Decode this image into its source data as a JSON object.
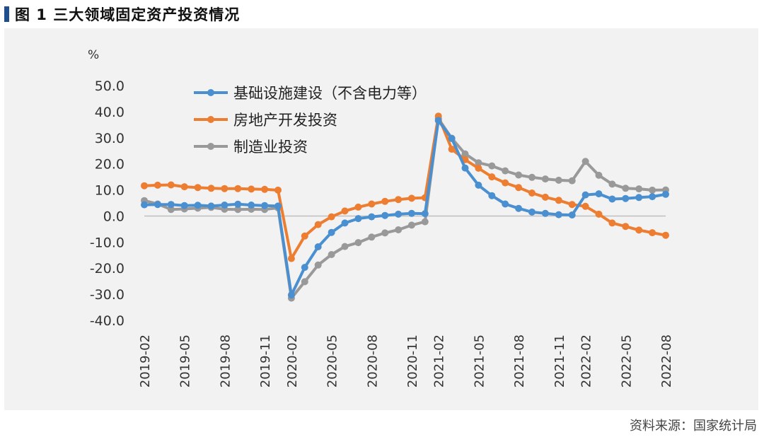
{
  "title": "图 1  三大领域固定资产投资情况",
  "source": "资料来源：国家统计局",
  "chart_data": {
    "type": "line",
    "ylabel": "%",
    "ylim": [
      -40,
      50
    ],
    "yticks": [
      "50.0",
      "40.0",
      "30.0",
      "20.0",
      "10.0",
      "0.0",
      "-10.0",
      "-20.0",
      "-30.0",
      "-40.0"
    ],
    "xtick_labels": [
      "2019-02",
      "2019-05",
      "2019-08",
      "2019-11",
      "2020-02",
      "2020-05",
      "2020-08",
      "2020-11",
      "2021-02",
      "2021-05",
      "2021-08",
      "2021-11",
      "2022-02",
      "2022-05",
      "2022-08"
    ],
    "x": [
      "2019-02",
      "2019-03",
      "2019-04",
      "2019-05",
      "2019-06",
      "2019-07",
      "2019-08",
      "2019-09",
      "2019-10",
      "2019-11",
      "2019-12",
      "2020-02",
      "2020-03",
      "2020-04",
      "2020-05",
      "2020-06",
      "2020-07",
      "2020-08",
      "2020-09",
      "2020-10",
      "2020-11",
      "2020-12",
      "2021-02",
      "2021-03",
      "2021-04",
      "2021-05",
      "2021-06",
      "2021-07",
      "2021-08",
      "2021-09",
      "2021-10",
      "2021-11",
      "2021-12",
      "2022-02",
      "2022-03",
      "2022-04",
      "2022-05",
      "2022-06",
      "2022-07",
      "2022-08"
    ],
    "legend_position": "top-left",
    "grid": false,
    "series": [
      {
        "name": "基础设施建设（不含电力等）",
        "color": "#4a8fd0",
        "values": [
          4.3,
          4.4,
          4.4,
          4.0,
          4.1,
          3.8,
          4.2,
          4.5,
          4.2,
          4.0,
          3.8,
          -30.3,
          -19.7,
          -11.8,
          -6.3,
          -2.7,
          -1.0,
          -0.3,
          0.2,
          0.7,
          1.0,
          0.9,
          36.6,
          29.7,
          18.4,
          11.8,
          7.8,
          4.6,
          2.9,
          1.5,
          1.0,
          0.5,
          0.4,
          8.1,
          8.5,
          6.5,
          6.7,
          7.1,
          7.4,
          8.3
        ]
      },
      {
        "name": "房地产开发投资",
        "color": "#ed7d31",
        "values": [
          11.6,
          11.8,
          11.9,
          11.2,
          10.9,
          10.6,
          10.5,
          10.5,
          10.3,
          10.2,
          9.9,
          -16.3,
          -7.7,
          -3.3,
          -0.3,
          1.9,
          3.4,
          4.6,
          5.6,
          6.3,
          6.8,
          7.0,
          38.3,
          25.6,
          21.6,
          18.3,
          15.0,
          12.7,
          10.9,
          8.8,
          7.2,
          6.0,
          4.4,
          3.7,
          0.7,
          -2.7,
          -4.0,
          -5.4,
          -6.4,
          -7.4
        ]
      },
      {
        "name": "制造业投资",
        "color": "#999999",
        "values": [
          5.9,
          4.6,
          2.5,
          2.7,
          3.0,
          3.3,
          2.6,
          2.5,
          2.6,
          2.5,
          3.1,
          -31.5,
          -25.2,
          -18.8,
          -14.8,
          -11.7,
          -10.2,
          -8.1,
          -6.5,
          -5.3,
          -3.5,
          -2.2,
          37.3,
          29.8,
          23.8,
          20.4,
          19.2,
          17.3,
          15.7,
          14.8,
          14.2,
          13.7,
          13.5,
          20.9,
          15.6,
          12.2,
          10.6,
          10.4,
          9.9,
          10.0
        ]
      }
    ]
  }
}
